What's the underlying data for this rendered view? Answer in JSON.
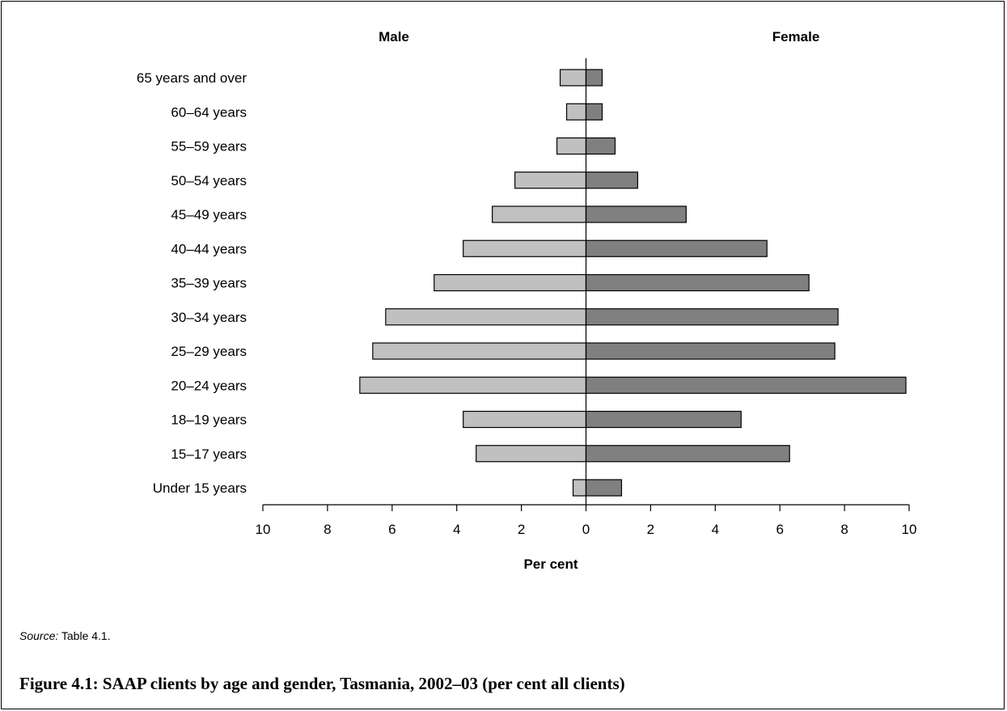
{
  "chart_data": {
    "type": "bar",
    "orientation": "horizontal-population-pyramid",
    "categories": [
      "Under 15 years",
      "15–17 years",
      "18–19 years",
      "20–24 years",
      "25–29 years",
      "30–34 years",
      "35–39 years",
      "40–44 years",
      "45–49 years",
      "50–54 years",
      "55–59 years",
      "60–64 years",
      "65 years and over"
    ],
    "series": [
      {
        "name": "Male",
        "side": "left",
        "color": "#c0c0c0",
        "values": [
          0.4,
          3.4,
          3.8,
          7.0,
          6.6,
          6.2,
          4.7,
          3.8,
          2.9,
          2.2,
          0.9,
          0.6,
          0.8
        ]
      },
      {
        "name": "Female",
        "side": "right",
        "color": "#808080",
        "values": [
          1.1,
          6.3,
          4.8,
          9.9,
          7.7,
          7.8,
          6.9,
          5.6,
          3.1,
          1.6,
          0.9,
          0.5,
          0.5
        ]
      }
    ],
    "xlabel": "Per cent",
    "xlim": [
      -10,
      10
    ],
    "xticks": [
      -10,
      -8,
      -6,
      -4,
      -2,
      0,
      2,
      4,
      6,
      8,
      10
    ],
    "xtick_labels": [
      "10",
      "8",
      "6",
      "4",
      "2",
      "0",
      "2",
      "4",
      "6",
      "8",
      "10"
    ],
    "grid": false,
    "legend": "none"
  },
  "source": {
    "label": "Source:",
    "text": " Table 4.1."
  },
  "caption": "Figure 4.1: SAAP clients by age and gender, Tasmania, 2002–03 (per cent all clients)"
}
